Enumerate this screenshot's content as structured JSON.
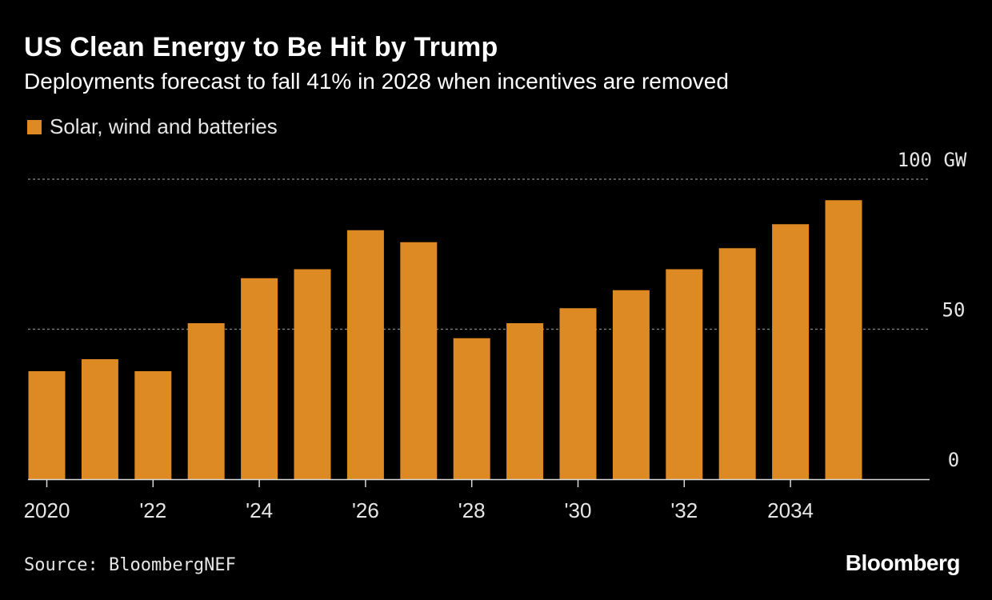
{
  "chart_data": {
    "type": "bar",
    "title": "US Clean Energy to Be Hit by Trump",
    "subtitle": "Deployments forecast to fall 41% in 2028 when incentives are removed",
    "series": [
      {
        "name": "Solar, wind and batteries",
        "color": "#dd8a25",
        "values": [
          36,
          40,
          36,
          52,
          67,
          70,
          83,
          79,
          47,
          52,
          57,
          63,
          70,
          77,
          85,
          93
        ]
      }
    ],
    "categories": [
      "2020",
      "2021",
      "2022",
      "2023",
      "2024",
      "2025",
      "2026",
      "2027",
      "2028",
      "2029",
      "2030",
      "2031",
      "2032",
      "2033",
      "2034",
      "2035"
    ],
    "x_tick_labels": [
      "2020",
      "",
      "'22",
      "",
      "'24",
      "",
      "'26",
      "",
      "'28",
      "",
      "'30",
      "",
      "'32",
      "",
      "2034",
      ""
    ],
    "y_ticks": [
      {
        "value": 0,
        "label": "0"
      },
      {
        "value": 50,
        "label": "50"
      },
      {
        "value": 100,
        "label": "100 GW"
      }
    ],
    "ylim": [
      0,
      100
    ],
    "grid": true,
    "legend_position": "top-left",
    "xlabel": "",
    "ylabel": ""
  },
  "footer": {
    "source": "Source: BloombergNEF",
    "brand": "Bloomberg"
  },
  "colors": {
    "background": "#000000",
    "bar": "#dd8a25",
    "grid": "#8a8a8a",
    "axis": "#d9d9d9",
    "text": "#e6e6e6"
  }
}
